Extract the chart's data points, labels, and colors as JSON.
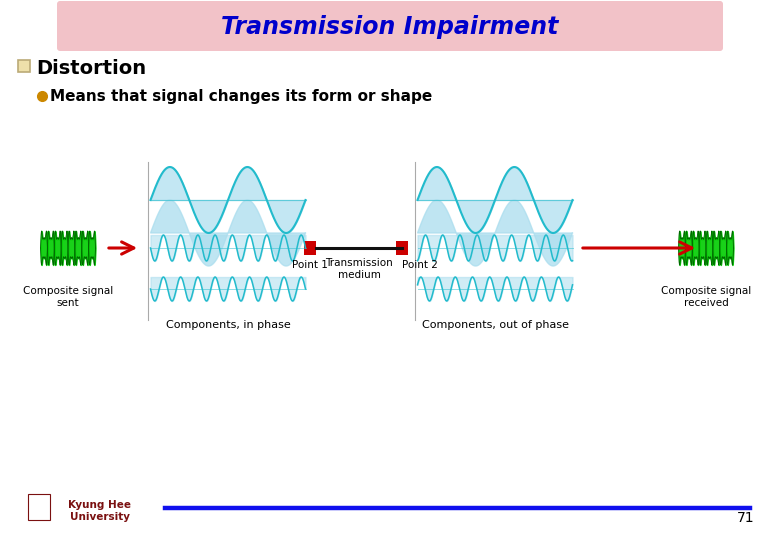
{
  "title": "Transmission Impairment",
  "title_color": "#0000CC",
  "title_bg_color": "#F2C2C8",
  "bullet_header": "Distortion",
  "bullet_text": "Means that signal changes its form or shape",
  "page_number": "71",
  "footer_line_color": "#1010EE",
  "label_composite_sent": "Composite signal\nsent",
  "label_components_in_phase": "Components, in phase",
  "label_point1": "Point 1",
  "label_transmission": "Transmission\nmedium",
  "label_point2": "Point 2",
  "label_components_out_phase": "Components, out of phase",
  "label_composite_received": "Composite signal\nreceived",
  "bg_color": "#FFFFFF",
  "wave_color_cyan": "#22BBCC",
  "wave_fill_cyan": "#AADDEE",
  "wave_color_green": "#00CC00",
  "wave_fill_green": "#00CC00",
  "arrow_color": "#CC0000",
  "transmission_line_color": "#111111",
  "point_box_color": "#CC0000",
  "bullet_sq_edge": "#BBAA77",
  "bullet_sq_face": "#EEE0AA",
  "bullet_dot_color": "#CC8800"
}
